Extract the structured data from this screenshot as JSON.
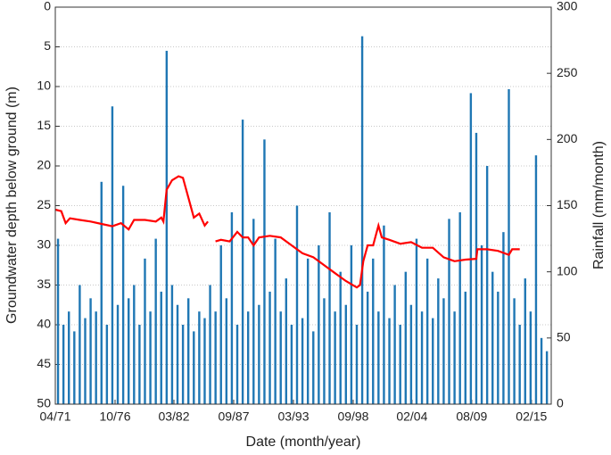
{
  "chart_data": {
    "type": "bar-line",
    "xlabel": "Date (month/year)",
    "ylabel": "Groundwater depth below ground (m)",
    "y2label": "Rainfall (mm/month)",
    "xlim": [
      1971.25,
      2016.9
    ],
    "xticks": [
      {
        "value": 1971.25,
        "label": "04/71"
      },
      {
        "value": 1976.75,
        "label": "10/76"
      },
      {
        "value": 1982.17,
        "label": "03/82"
      },
      {
        "value": 1987.67,
        "label": "09/87"
      },
      {
        "value": 1993.17,
        "label": "03/93"
      },
      {
        "value": 1998.67,
        "label": "09/98"
      },
      {
        "value": 2004.08,
        "label": "02/04"
      },
      {
        "value": 2009.58,
        "label": "08/09"
      },
      {
        "value": 2015.08,
        "label": "02/15"
      }
    ],
    "ylim": [
      0,
      50
    ],
    "y_inverted": true,
    "yticks": [
      0,
      5,
      10,
      15,
      20,
      25,
      30,
      35,
      40,
      45,
      50
    ],
    "y2lim": [
      0,
      300
    ],
    "y2ticks": [
      0,
      50,
      100,
      150,
      200,
      250,
      300
    ],
    "grid": true,
    "series": [
      {
        "name": "Rainfall",
        "kind": "bar",
        "axis": "y2",
        "color": "#1f77b4",
        "x": [
          1971.5,
          1972,
          1972.5,
          1973,
          1973.5,
          1974,
          1974.5,
          1975,
          1975.5,
          1976,
          1976.5,
          1977,
          1977.5,
          1978,
          1978.5,
          1979,
          1979.5,
          1980,
          1980.5,
          1981,
          1981.5,
          1982,
          1982.5,
          1983,
          1983.5,
          1984,
          1984.5,
          1985,
          1985.5,
          1986,
          1986.5,
          1987,
          1987.5,
          1988,
          1988.5,
          1989,
          1989.5,
          1990,
          1990.5,
          1991,
          1991.5,
          1992,
          1992.5,
          1993,
          1993.5,
          1994,
          1994.5,
          1995,
          1995.5,
          1996,
          1996.5,
          1997,
          1997.5,
          1998,
          1998.5,
          1999,
          1999.5,
          2000,
          2000.5,
          2001,
          2001.5,
          2002,
          2002.5,
          2003,
          2003.5,
          2004,
          2004.5,
          2005,
          2005.5,
          2006,
          2006.5,
          2007,
          2007.5,
          2008,
          2008.5,
          2009,
          2009.5,
          2010,
          2010.5,
          2011,
          2011.5,
          2012,
          2012.5,
          2013,
          2013.5,
          2014,
          2014.5,
          2015,
          2015.5,
          2016,
          2016.5
        ],
        "values": [
          125,
          60,
          70,
          55,
          90,
          65,
          80,
          70,
          168,
          60,
          225,
          75,
          165,
          80,
          90,
          60,
          110,
          70,
          125,
          85,
          267,
          90,
          75,
          60,
          80,
          55,
          70,
          65,
          90,
          70,
          120,
          80,
          145,
          60,
          215,
          70,
          140,
          75,
          200,
          85,
          125,
          70,
          95,
          60,
          150,
          65,
          110,
          55,
          120,
          80,
          145,
          70,
          100,
          75,
          120,
          60,
          278,
          85,
          110,
          70,
          135,
          65,
          90,
          60,
          100,
          75,
          125,
          70,
          110,
          65,
          95,
          80,
          140,
          70,
          145,
          85,
          235,
          205,
          120,
          180,
          100,
          85,
          130,
          238,
          80,
          60,
          95,
          70,
          188,
          50,
          40
        ]
      },
      {
        "name": "Groundwater depth",
        "kind": "line",
        "axis": "y",
        "color": "#ff0000",
        "x": [
          1971.25,
          1971.8,
          1972.2,
          1972.6,
          1973.5,
          1974.5,
          1975.5,
          1976.5,
          1977.3,
          1978.0,
          1978.5,
          1979.5,
          1980.5,
          1981.0,
          1981.2,
          1981.5,
          1982.0,
          1982.6,
          1983.0,
          1983.5,
          1984.0,
          1984.5,
          1985.0,
          1985.3,
          1985.6,
          1986.0,
          1986.5,
          1987.3,
          1988.0,
          1988.5,
          1989.0,
          1989.5,
          1990.0,
          1991.0,
          1992.0,
          1993.0,
          1994.0,
          1995.0,
          1996.0,
          1997.0,
          1998.0,
          1999.0,
          1999.3,
          1999.6,
          2000.0,
          2000.5,
          2001.0,
          2001.3,
          2002.0,
          2003.0,
          2004.0,
          2005.0,
          2006.0,
          2007.0,
          2008.0,
          2009.0,
          2010.0,
          2010.1,
          2011.0,
          2012.0,
          2013.0,
          2013.3,
          2014.0
        ],
        "values": [
          25.5,
          25.7,
          27.2,
          26.6,
          26.8,
          27.0,
          27.3,
          27.6,
          27.2,
          28.0,
          26.8,
          26.8,
          27.0,
          26.5,
          27.0,
          23.0,
          21.8,
          21.3,
          21.5,
          24.0,
          26.5,
          26.0,
          27.5,
          27.0,
          null,
          29.5,
          29.3,
          29.5,
          28.3,
          29.0,
          29.0,
          30.0,
          29.0,
          28.8,
          29.0,
          30.0,
          31.0,
          31.5,
          32.5,
          33.5,
          34.5,
          35.3,
          35.0,
          32.0,
          30.0,
          30.0,
          27.5,
          29.0,
          29.3,
          29.8,
          29.6,
          30.3,
          30.3,
          31.5,
          32.0,
          31.8,
          31.7,
          30.5,
          30.5,
          30.7,
          31.2,
          30.5,
          30.5
        ]
      }
    ]
  }
}
